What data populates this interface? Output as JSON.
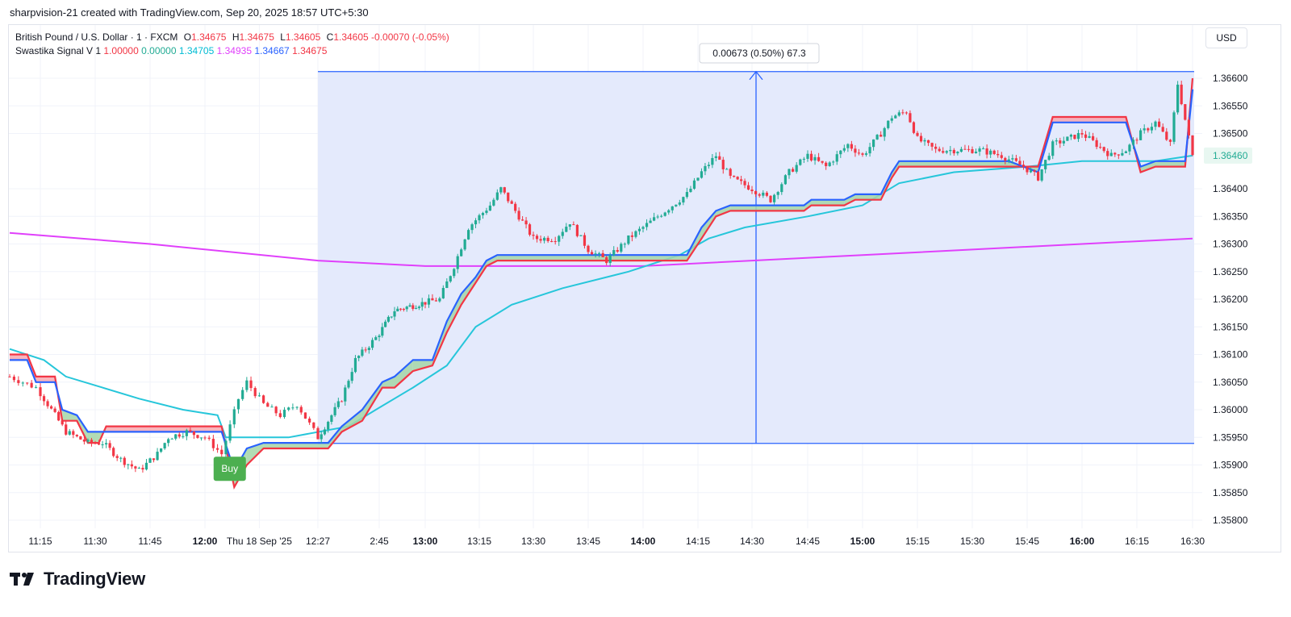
{
  "header": {
    "attribution": "sharpvision-21 created with TradingView.com, Sep 20, 2025 18:57 UTC+5:30"
  },
  "legend": {
    "symbol_line": "British Pound / U.S. Dollar · 1 · FXCM",
    "o_label": "O",
    "o_value": "1.34675",
    "h_label": "H",
    "h_value": "1.34675",
    "l_label": "L",
    "l_value": "1.34605",
    "c_label": "C",
    "c_value": "1.34605",
    "change": "-0.00070 (-0.05%)",
    "indicator_name": "Swastika Signal V 1",
    "ind_values": [
      "1.00000",
      "0.00000",
      "1.34705",
      "1.34935",
      "1.34667",
      "1.34675"
    ]
  },
  "currency_button": "USD",
  "brand": {
    "name": "TradingView",
    "logo_icon": "tradingview-logo-icon"
  },
  "colors": {
    "up": "#22ab94",
    "down": "#f23645",
    "range_fill": "#e3e9fc",
    "range_border": "#2962ff",
    "fast_line": "#2962ff",
    "slow_line": "#f23645",
    "cyan_line": "#26c6da",
    "magenta_line": "#e040fb",
    "buy_badge": "#4caf50",
    "price_label": "#22ab94"
  },
  "chart_data": {
    "type": "candlestick",
    "symbol": "GBPUSD",
    "timeframe": "1",
    "yaxis_ticks": [
      "1.36600",
      "1.36550",
      "1.36500",
      "1.36400",
      "1.36350",
      "1.36300",
      "1.36250",
      "1.36200",
      "1.36150",
      "1.36100",
      "1.36050",
      "1.36000",
      "1.35950",
      "1.35900",
      "1.35850",
      "1.35800"
    ],
    "ylim": [
      1.3577,
      1.3669
    ],
    "xaxis_ticks": [
      {
        "label": "11:15",
        "bold": false
      },
      {
        "label": "11:30",
        "bold": false
      },
      {
        "label": "11:45",
        "bold": false
      },
      {
        "label": "12:00",
        "bold": true
      },
      {
        "label": "Thu 18 Sep '25",
        "bold": false
      },
      {
        "label": "12:27",
        "bold": false
      },
      {
        "label": "2:45",
        "bold": false
      },
      {
        "label": "13:00",
        "bold": true
      },
      {
        "label": "13:15",
        "bold": false
      },
      {
        "label": "13:30",
        "bold": false
      },
      {
        "label": "13:45",
        "bold": false
      },
      {
        "label": "14:00",
        "bold": true
      },
      {
        "label": "14:15",
        "bold": false
      },
      {
        "label": "14:30",
        "bold": false
      },
      {
        "label": "14:45",
        "bold": false
      },
      {
        "label": "15:00",
        "bold": true
      },
      {
        "label": "15:15",
        "bold": false
      },
      {
        "label": "15:30",
        "bold": false
      },
      {
        "label": "15:45",
        "bold": false
      },
      {
        "label": "16:00",
        "bold": true
      },
      {
        "label": "16:15",
        "bold": false
      },
      {
        "label": "16:30",
        "bold": false
      }
    ],
    "last_price": "1.36460",
    "price_range": {
      "label": "0.00673 (0.50%) 67.3",
      "low": 1.35939,
      "high": 1.36612,
      "start_time": "12:27",
      "end_time": "16:30"
    },
    "buy_signal": {
      "label": "Buy",
      "time": "12:04",
      "price": 1.3588
    },
    "price_anchor_points": [
      {
        "t": "11:08",
        "p": 1.3606
      },
      {
        "t": "11:14",
        "p": 1.3604
      },
      {
        "t": "11:18",
        "p": 1.36
      },
      {
        "t": "11:22",
        "p": 1.3596
      },
      {
        "t": "11:28",
        "p": 1.3594
      },
      {
        "t": "11:32",
        "p": 1.3594
      },
      {
        "t": "11:37",
        "p": 1.3591
      },
      {
        "t": "11:42",
        "p": 1.3589
      },
      {
        "t": "11:47",
        "p": 1.3592
      },
      {
        "t": "11:50",
        "p": 1.3595
      },
      {
        "t": "11:55",
        "p": 1.3596
      },
      {
        "t": "12:00",
        "p": 1.3595
      },
      {
        "t": "12:04",
        "p": 1.3592
      },
      {
        "t": "12:08",
        "p": 1.3602
      },
      {
        "t": "12:10",
        "p": 1.3605
      },
      {
        "t": "12:14",
        "p": 1.3601
      },
      {
        "t": "12:18",
        "p": 1.3599
      },
      {
        "t": "12:22",
        "p": 1.3601
      },
      {
        "t": "12:27",
        "p": 1.3595
      },
      {
        "t": "12:34",
        "p": 1.3602
      },
      {
        "t": "12:38",
        "p": 1.3609
      },
      {
        "t": "12:44",
        "p": 1.3613
      },
      {
        "t": "12:50",
        "p": 1.3618
      },
      {
        "t": "12:57",
        "p": 1.3619
      },
      {
        "t": "13:04",
        "p": 1.362
      },
      {
        "t": "13:08",
        "p": 1.3626
      },
      {
        "t": "13:12",
        "p": 1.3633
      },
      {
        "t": "13:18",
        "p": 1.3637
      },
      {
        "t": "13:21",
        "p": 1.364
      },
      {
        "t": "13:25",
        "p": 1.3636
      },
      {
        "t": "13:30",
        "p": 1.3631
      },
      {
        "t": "13:36",
        "p": 1.3631
      },
      {
        "t": "13:40",
        "p": 1.3634
      },
      {
        "t": "13:45",
        "p": 1.3629
      },
      {
        "t": "13:50",
        "p": 1.3627
      },
      {
        "t": "13:56",
        "p": 1.3631
      },
      {
        "t": "14:00",
        "p": 1.3633
      },
      {
        "t": "14:06",
        "p": 1.3636
      },
      {
        "t": "14:12",
        "p": 1.3639
      },
      {
        "t": "14:16",
        "p": 1.3643
      },
      {
        "t": "14:20",
        "p": 1.3646
      },
      {
        "t": "14:24",
        "p": 1.3642
      },
      {
        "t": "14:30",
        "p": 1.364
      },
      {
        "t": "14:35",
        "p": 1.3638
      },
      {
        "t": "14:40",
        "p": 1.3643
      },
      {
        "t": "14:45",
        "p": 1.3646
      },
      {
        "t": "14:50",
        "p": 1.3644
      },
      {
        "t": "14:56",
        "p": 1.3648
      },
      {
        "t": "15:00",
        "p": 1.3646
      },
      {
        "t": "15:05",
        "p": 1.365
      },
      {
        "t": "15:08",
        "p": 1.3653
      },
      {
        "t": "15:12",
        "p": 1.3654
      },
      {
        "t": "15:15",
        "p": 1.3649
      },
      {
        "t": "15:20",
        "p": 1.3647
      },
      {
        "t": "15:26",
        "p": 1.3647
      },
      {
        "t": "15:32",
        "p": 1.3647
      },
      {
        "t": "15:38",
        "p": 1.3646
      },
      {
        "t": "15:44",
        "p": 1.3644
      },
      {
        "t": "15:48",
        "p": 1.3642
      },
      {
        "t": "15:52",
        "p": 1.3648
      },
      {
        "t": "15:56",
        "p": 1.3649
      },
      {
        "t": "16:00",
        "p": 1.365
      },
      {
        "t": "16:04",
        "p": 1.3648
      },
      {
        "t": "16:08",
        "p": 1.3646
      },
      {
        "t": "16:12",
        "p": 1.3647
      },
      {
        "t": "16:16",
        "p": 1.365
      },
      {
        "t": "16:20",
        "p": 1.3652
      },
      {
        "t": "16:24",
        "p": 1.3648
      },
      {
        "t": "16:26",
        "p": 1.3659
      },
      {
        "t": "16:30",
        "p": 1.3646
      }
    ],
    "fast_line_points": [
      {
        "t": "11:08",
        "p": 1.3609
      },
      {
        "t": "11:12",
        "p": 1.3609
      },
      {
        "t": "11:14",
        "p": 1.3605
      },
      {
        "t": "11:19",
        "p": 1.3605
      },
      {
        "t": "11:21",
        "p": 1.36
      },
      {
        "t": "11:25",
        "p": 1.3599
      },
      {
        "t": "11:28",
        "p": 1.3596
      },
      {
        "t": "11:31",
        "p": 1.3596
      },
      {
        "t": "11:33",
        "p": 1.3596
      },
      {
        "t": "12:04",
        "p": 1.3596
      },
      {
        "t": "12:07",
        "p": 1.3589
      },
      {
        "t": "12:10",
        "p": 1.3593
      },
      {
        "t": "12:14",
        "p": 1.3594
      },
      {
        "t": "12:30",
        "p": 1.3594
      },
      {
        "t": "12:34",
        "p": 1.3597
      },
      {
        "t": "12:40",
        "p": 1.36
      },
      {
        "t": "12:46",
        "p": 1.3605
      },
      {
        "t": "12:50",
        "p": 1.3606
      },
      {
        "t": "12:56",
        "p": 1.3609
      },
      {
        "t": "13:02",
        "p": 1.3609
      },
      {
        "t": "13:06",
        "p": 1.3616
      },
      {
        "t": "13:10",
        "p": 1.3621
      },
      {
        "t": "13:14",
        "p": 1.3624
      },
      {
        "t": "13:17",
        "p": 1.3627
      },
      {
        "t": "13:20",
        "p": 1.3628
      },
      {
        "t": "14:12",
        "p": 1.3628
      },
      {
        "t": "14:16",
        "p": 1.3633
      },
      {
        "t": "14:20",
        "p": 1.3636
      },
      {
        "t": "14:24",
        "p": 1.3637
      },
      {
        "t": "14:44",
        "p": 1.3637
      },
      {
        "t": "14:46",
        "p": 1.3638
      },
      {
        "t": "14:55",
        "p": 1.3638
      },
      {
        "t": "14:58",
        "p": 1.3639
      },
      {
        "t": "15:05",
        "p": 1.3639
      },
      {
        "t": "15:08",
        "p": 1.3643
      },
      {
        "t": "15:10",
        "p": 1.3645
      },
      {
        "t": "15:40",
        "p": 1.3645
      },
      {
        "t": "15:48",
        "p": 1.3643
      },
      {
        "t": "15:52",
        "p": 1.3652
      },
      {
        "t": "16:12",
        "p": 1.3652
      },
      {
        "t": "16:16",
        "p": 1.3644
      },
      {
        "t": "16:20",
        "p": 1.3645
      },
      {
        "t": "16:28",
        "p": 1.3645
      },
      {
        "t": "16:30",
        "p": 1.3658
      }
    ],
    "slow_line_points": [
      {
        "t": "11:08",
        "p": 1.361
      },
      {
        "t": "11:12",
        "p": 1.361
      },
      {
        "t": "11:14",
        "p": 1.3606
      },
      {
        "t": "11:19",
        "p": 1.3606
      },
      {
        "t": "11:21",
        "p": 1.3598
      },
      {
        "t": "11:25",
        "p": 1.3598
      },
      {
        "t": "11:28",
        "p": 1.3594
      },
      {
        "t": "11:31",
        "p": 1.3594
      },
      {
        "t": "11:33",
        "p": 1.3597
      },
      {
        "t": "12:04",
        "p": 1.3597
      },
      {
        "t": "12:07",
        "p": 1.3586
      },
      {
        "t": "12:10",
        "p": 1.359
      },
      {
        "t": "12:14",
        "p": 1.3593
      },
      {
        "t": "12:30",
        "p": 1.3593
      },
      {
        "t": "12:34",
        "p": 1.3596
      },
      {
        "t": "12:40",
        "p": 1.3598
      },
      {
        "t": "12:46",
        "p": 1.3604
      },
      {
        "t": "12:50",
        "p": 1.3604
      },
      {
        "t": "12:56",
        "p": 1.3607
      },
      {
        "t": "13:02",
        "p": 1.3608
      },
      {
        "t": "13:06",
        "p": 1.3614
      },
      {
        "t": "13:10",
        "p": 1.3619
      },
      {
        "t": "13:14",
        "p": 1.3623
      },
      {
        "t": "13:17",
        "p": 1.3626
      },
      {
        "t": "13:20",
        "p": 1.3627
      },
      {
        "t": "14:12",
        "p": 1.3627
      },
      {
        "t": "14:16",
        "p": 1.3631
      },
      {
        "t": "14:20",
        "p": 1.3635
      },
      {
        "t": "14:24",
        "p": 1.3636
      },
      {
        "t": "14:44",
        "p": 1.3636
      },
      {
        "t": "14:46",
        "p": 1.3637
      },
      {
        "t": "14:55",
        "p": 1.3637
      },
      {
        "t": "14:58",
        "p": 1.3638
      },
      {
        "t": "15:05",
        "p": 1.3638
      },
      {
        "t": "15:08",
        "p": 1.3642
      },
      {
        "t": "15:10",
        "p": 1.3644
      },
      {
        "t": "15:40",
        "p": 1.3644
      },
      {
        "t": "15:48",
        "p": 1.3644
      },
      {
        "t": "15:52",
        "p": 1.3653
      },
      {
        "t": "16:12",
        "p": 1.3653
      },
      {
        "t": "16:16",
        "p": 1.3643
      },
      {
        "t": "16:20",
        "p": 1.3644
      },
      {
        "t": "16:28",
        "p": 1.3644
      },
      {
        "t": "16:30",
        "p": 1.366
      }
    ],
    "cyan_line_points": [
      {
        "t": "11:08",
        "p": 1.3611
      },
      {
        "t": "11:16",
        "p": 1.3609
      },
      {
        "t": "11:22",
        "p": 1.3606
      },
      {
        "t": "11:32",
        "p": 1.3604
      },
      {
        "t": "11:42",
        "p": 1.3602
      },
      {
        "t": "11:54",
        "p": 1.36
      },
      {
        "t": "12:03",
        "p": 1.3599
      },
      {
        "t": "12:05",
        "p": 1.3595
      },
      {
        "t": "12:20",
        "p": 1.3595
      },
      {
        "t": "12:36",
        "p": 1.3597
      },
      {
        "t": "12:44",
        "p": 1.36
      },
      {
        "t": "12:56",
        "p": 1.3604
      },
      {
        "t": "13:06",
        "p": 1.3608
      },
      {
        "t": "13:14",
        "p": 1.3615
      },
      {
        "t": "13:24",
        "p": 1.3619
      },
      {
        "t": "13:38",
        "p": 1.3622
      },
      {
        "t": "13:56",
        "p": 1.3625
      },
      {
        "t": "14:10",
        "p": 1.3628
      },
      {
        "t": "14:18",
        "p": 1.3631
      },
      {
        "t": "14:28",
        "p": 1.3633
      },
      {
        "t": "14:45",
        "p": 1.3635
      },
      {
        "t": "15:00",
        "p": 1.3637
      },
      {
        "t": "15:10",
        "p": 1.3641
      },
      {
        "t": "15:25",
        "p": 1.3643
      },
      {
        "t": "15:45",
        "p": 1.3644
      },
      {
        "t": "16:00",
        "p": 1.3645
      },
      {
        "t": "16:20",
        "p": 1.3645
      },
      {
        "t": "16:30",
        "p": 1.3646
      }
    ],
    "magenta_line_points": [
      {
        "t": "11:08",
        "p": 1.3632
      },
      {
        "t": "11:45",
        "p": 1.363
      },
      {
        "t": "12:27",
        "p": 1.3627
      },
      {
        "t": "13:00",
        "p": 1.3626
      },
      {
        "t": "13:30",
        "p": 1.3626
      },
      {
        "t": "14:00",
        "p": 1.3626
      },
      {
        "t": "14:30",
        "p": 1.3627
      },
      {
        "t": "15:00",
        "p": 1.3628
      },
      {
        "t": "15:30",
        "p": 1.3629
      },
      {
        "t": "16:00",
        "p": 1.363
      },
      {
        "t": "16:30",
        "p": 1.3631
      }
    ]
  }
}
